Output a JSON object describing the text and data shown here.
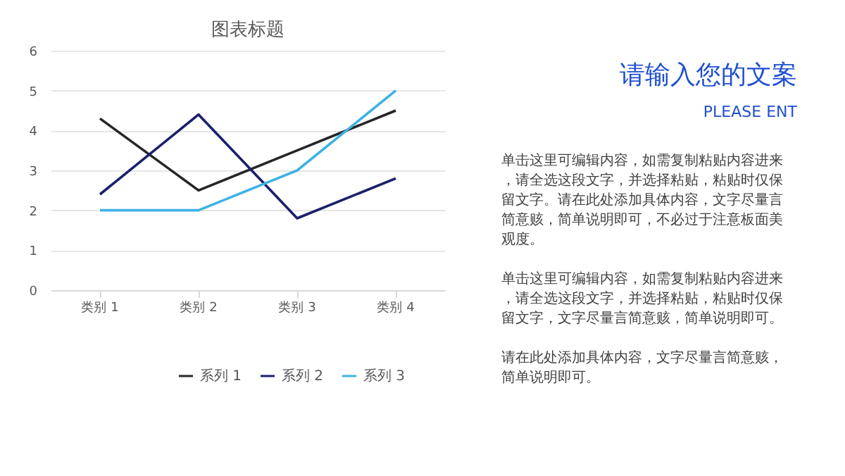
{
  "chart_data": {
    "type": "line",
    "title": "图表标题",
    "categories": [
      "类别 1",
      "类别 2",
      "类别 3",
      "类别 4"
    ],
    "series": [
      {
        "name": "系列 1",
        "color": "#262626",
        "values": [
          4.3,
          2.5,
          3.5,
          4.5
        ]
      },
      {
        "name": "系列 2",
        "color": "#1b1f6b",
        "values": [
          2.4,
          4.4,
          1.8,
          2.8
        ]
      },
      {
        "name": "系列 3",
        "color": "#3fb2e3",
        "values": [
          2,
          2,
          3,
          5
        ]
      }
    ],
    "ylim": [
      0,
      6
    ],
    "yticks": [
      0,
      1,
      2,
      3,
      4,
      5,
      6
    ],
    "grid": "y",
    "legend": "bottom",
    "marker": "none",
    "line_style": "solid",
    "annotations": [
      "请输入您的文案",
      "PLEASE ENT",
      "单击这里可编辑内容，如需复制粘贴内容进来，请全选这段文字，并选择粘贴，粘贴时仅保留文字。请在此处添加具体内容，文字尽量言简意赅，简单说明即可，不必过于注意板面美观度。",
      "单击这里可编辑内容，如需复制粘贴内容进来，请全选这段文字，并选择粘贴，粘贴时仅保留文字，文字尽量言简意赅，简单说明即可。",
      "请在此处添加具体内容，文字尽量言简意赅，简单说明即可。"
    ]
  }
}
